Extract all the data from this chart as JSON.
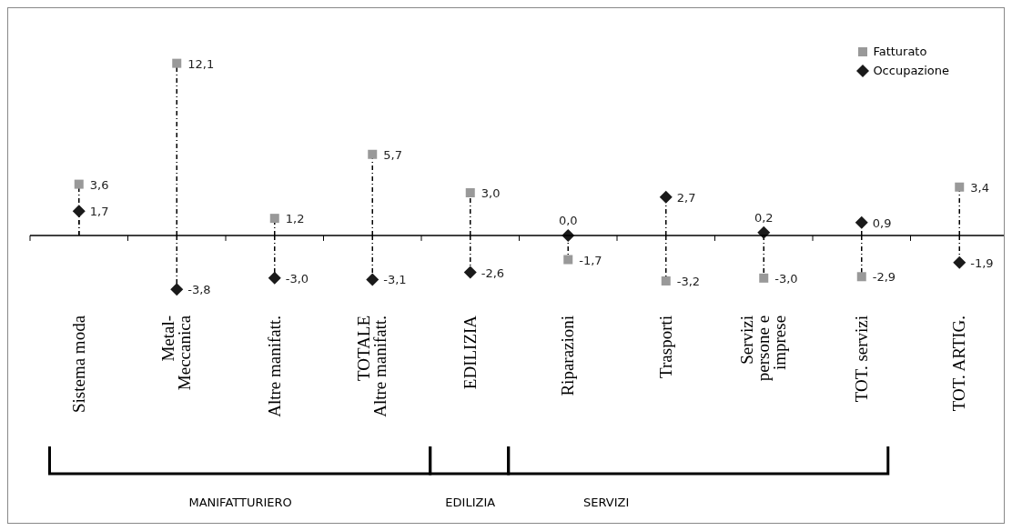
{
  "chart_data": {
    "type": "lollipop",
    "categories": [
      "Sistema moda",
      "Metal-\nMeccanica",
      "Altre manifatt.",
      "TOTALE\nAltre manifatt.",
      "EDILIZIA",
      "Riparazioni",
      "Trasporti",
      "Servizi\npersone e\nimprese",
      "TOT. servizi",
      "TOT. ARTIG."
    ],
    "series": [
      {
        "name": "Fatturato",
        "color": "#999999",
        "marker": "square",
        "values": [
          3.6,
          12.1,
          1.2,
          5.7,
          3.0,
          -1.7,
          -3.2,
          -3.0,
          -2.9,
          3.4
        ],
        "value_labels": [
          "3,6",
          "12,1",
          "1,2",
          "5,7",
          "3,0",
          "-1,7",
          "-3,2",
          "-3,0",
          "-2,9",
          "3,4"
        ]
      },
      {
        "name": "Occupazione",
        "color": "#1a1a1a",
        "marker": "diamond",
        "values": [
          1.7,
          -3.8,
          -3.0,
          -3.1,
          -2.6,
          0.0,
          2.7,
          0.2,
          0.9,
          -1.9
        ],
        "value_labels": [
          "1,7",
          "-3,8",
          "-3,0",
          "-3,1",
          "-2,6",
          "0,0",
          "2,7",
          "0,2",
          "0,9",
          "-1,9"
        ]
      }
    ],
    "line_style": "dashed",
    "legend": "top right",
    "annotations": [
      "MANIFATTURIERO",
      "EDILIZIA",
      "SERVIZI"
    ]
  }
}
